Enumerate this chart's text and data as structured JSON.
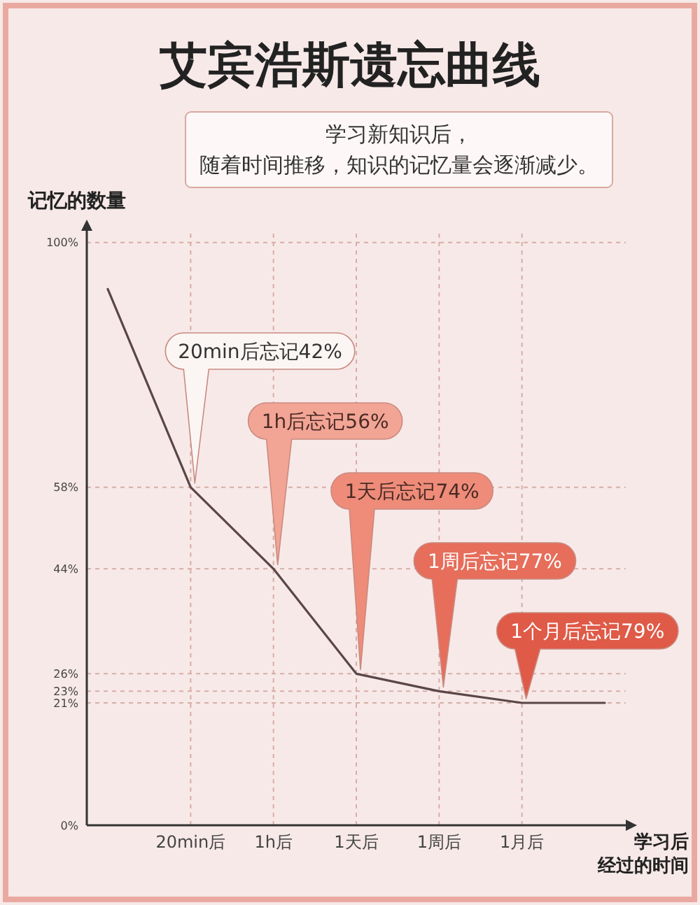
{
  "chart_data": {
    "type": "line",
    "title": "艾宾浩斯遗忘曲线",
    "subtitle": "学习新知识后，随着时间推移，知识的记忆量会逐渐减少。",
    "xlabel": "学习后经过的时间",
    "ylabel": "记忆的数量",
    "categories": [
      null,
      "20min后",
      "1h后",
      "1天后",
      "1周后",
      "1月后",
      null
    ],
    "series": [
      {
        "color": "#5a4646",
        "values": [
          92,
          58,
          44,
          26,
          23,
          21,
          21
        ]
      }
    ],
    "ylim": [
      0,
      102
    ],
    "yticks": [
      {
        "value": 0,
        "label": "0%"
      },
      {
        "value": 21,
        "label": "21%"
      },
      {
        "value": 23,
        "label": "23%"
      },
      {
        "value": 26,
        "label": "26%"
      },
      {
        "value": 44,
        "label": "44%"
      },
      {
        "value": 58,
        "label": "58%"
      },
      {
        "value": 100,
        "label": "100%"
      }
    ],
    "grid": true,
    "annotations": [
      "20min后忘记42%",
      "1h后忘记56%",
      "1天后忘记74%",
      "1周后忘记77%",
      "1个月后忘记79%"
    ]
  }
}
